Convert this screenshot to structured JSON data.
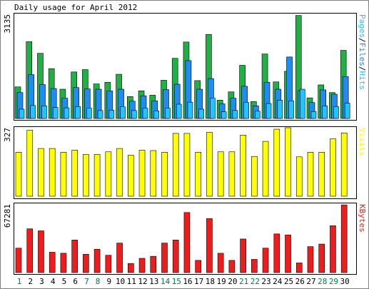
{
  "title": "Daily usage for April 2012",
  "colors": {
    "background": "#ffffff",
    "panel_border": "#000000",
    "outer_border": "#808080",
    "pages": "#22b046",
    "files": "#1e8cf0",
    "hits": "#22c4ff",
    "visits": "#ffff00",
    "kbytes": "#ee1c1c",
    "weekday_label": "#000000",
    "weekend_label": "#007f3f"
  },
  "chart_data": [
    {
      "type": "bar",
      "title": "Daily usage for April 2012",
      "y_max_label": "3135",
      "ylim": [
        0,
        3135
      ],
      "series_label_parts": [
        "Pages",
        "/",
        "Files",
        "/",
        "Hits"
      ],
      "categories": [
        "1",
        "2",
        "3",
        "4",
        "5",
        "6",
        "7",
        "8",
        "9",
        "10",
        "11",
        "12",
        "13",
        "14",
        "15",
        "16",
        "17",
        "18",
        "19",
        "20",
        "21",
        "22",
        "23",
        "24",
        "25",
        "26",
        "27",
        "28",
        "29",
        "30"
      ],
      "series": [
        {
          "name": "Hits",
          "values": [
            950,
            2310,
            1960,
            1500,
            880,
            1400,
            1470,
            1040,
            1090,
            1330,
            660,
            830,
            700,
            1150,
            1810,
            2300,
            1140,
            2530,
            550,
            800,
            1600,
            510,
            1940,
            1100,
            1420,
            3100,
            620,
            1010,
            780,
            2050
          ]
        },
        {
          "name": "Files",
          "values": [
            780,
            1320,
            1020,
            900,
            610,
            930,
            890,
            880,
            830,
            880,
            520,
            680,
            530,
            870,
            1030,
            1740,
            880,
            1200,
            440,
            610,
            970,
            380,
            1090,
            880,
            1850,
            840,
            480,
            860,
            730,
            1260
          ]
        },
        {
          "name": "Pages",
          "values": [
            280,
            390,
            380,
            330,
            320,
            360,
            310,
            240,
            250,
            350,
            240,
            310,
            230,
            310,
            430,
            490,
            280,
            610,
            200,
            240,
            480,
            220,
            450,
            550,
            530,
            880,
            210,
            380,
            360,
            460
          ]
        }
      ]
    },
    {
      "type": "bar",
      "y_max_label": "327",
      "ylim": [
        0,
        327
      ],
      "series_label": "Visits",
      "categories": [
        "1",
        "2",
        "3",
        "4",
        "5",
        "6",
        "7",
        "8",
        "9",
        "10",
        "11",
        "12",
        "13",
        "14",
        "15",
        "16",
        "17",
        "18",
        "19",
        "20",
        "21",
        "22",
        "23",
        "24",
        "25",
        "26",
        "27",
        "28",
        "29",
        "30"
      ],
      "series": [
        {
          "name": "Visits",
          "values": [
            210,
            315,
            228,
            228,
            210,
            220,
            200,
            200,
            212,
            228,
            196,
            220,
            218,
            210,
            300,
            300,
            210,
            305,
            212,
            212,
            292,
            190,
            262,
            320,
            327,
            188,
            210,
            210,
            274,
            302
          ]
        }
      ]
    },
    {
      "type": "bar",
      "y_max_label": "67281",
      "ylim": [
        0,
        67281
      ],
      "series_label": "KBytes",
      "categories": [
        "1",
        "2",
        "3",
        "4",
        "5",
        "6",
        "7",
        "8",
        "9",
        "10",
        "11",
        "12",
        "13",
        "14",
        "15",
        "16",
        "17",
        "18",
        "19",
        "20",
        "21",
        "22",
        "23",
        "24",
        "25",
        "26",
        "27",
        "28",
        "29",
        "30"
      ],
      "series": [
        {
          "name": "KBytes",
          "values": [
            24000,
            43000,
            41000,
            20000,
            19000,
            32000,
            18000,
            23000,
            17000,
            29000,
            9000,
            14000,
            16000,
            29000,
            32000,
            59000,
            12000,
            53000,
            19000,
            12000,
            33000,
            13000,
            24000,
            38000,
            37000,
            9500,
            25500,
            28000,
            46000,
            66500
          ]
        }
      ]
    }
  ],
  "weekends": [
    "1",
    "7",
    "8",
    "14",
    "15",
    "21",
    "22",
    "28",
    "29"
  ]
}
